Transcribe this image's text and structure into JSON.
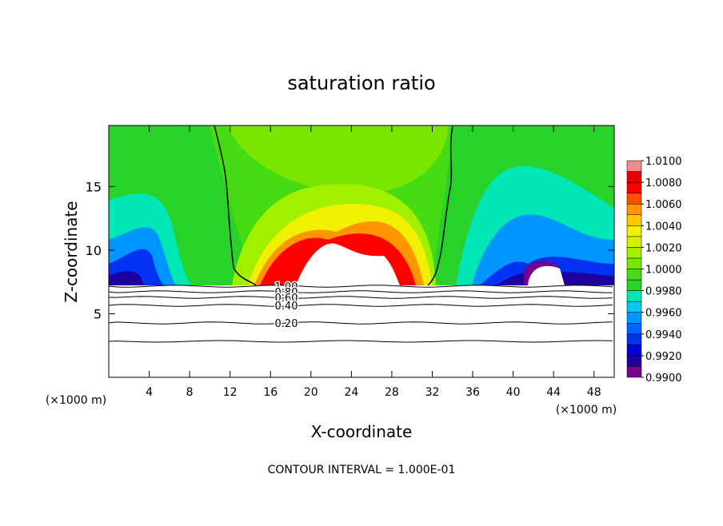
{
  "chart_data": {
    "type": "contour",
    "title": "saturation ratio",
    "x_label": "X-coordinate",
    "y_label": "Z-coordinate",
    "x_unit_labels": [
      "(×1000 m)",
      "(×1000 m)"
    ],
    "xlim": [
      0,
      50
    ],
    "xticks": [
      4,
      8,
      12,
      16,
      20,
      24,
      28,
      32,
      36,
      40,
      44,
      48
    ],
    "ylim": [
      0,
      19.8
    ],
    "yticks": [
      5,
      10,
      15
    ],
    "colorbar": {
      "clim": [
        0.99,
        1.01
      ],
      "colors": [
        "#78008c",
        "#1e00a0",
        "#0000dc",
        "#0032f0",
        "#0064ff",
        "#0096ff",
        "#00c8f0",
        "#00e6b4",
        "#28d228",
        "#46dc14",
        "#78e600",
        "#a0f000",
        "#d2f000",
        "#f0f000",
        "#ffc800",
        "#ff9600",
        "#ff5000",
        "#ff0000",
        "#e60000",
        "#f08c8c"
      ],
      "ticks": [
        {
          "value": 0.99,
          "label": "0.9900"
        },
        {
          "value": 0.992,
          "label": "0.9920"
        },
        {
          "value": 0.994,
          "label": "0.9940"
        },
        {
          "value": 0.996,
          "label": "0.9960"
        },
        {
          "value": 0.998,
          "label": "0.9980"
        },
        {
          "value": 1.0,
          "label": "1.0000"
        },
        {
          "value": 1.002,
          "label": "1.0020"
        },
        {
          "value": 1.004,
          "label": "1.0040"
        },
        {
          "value": 1.006,
          "label": "1.0060"
        },
        {
          "value": 1.008,
          "label": "1.0080"
        },
        {
          "value": 1.01,
          "label": "1.0100"
        }
      ]
    },
    "contour_labels": [
      {
        "value": 1.0,
        "label": "1.00"
      },
      {
        "value": 0.8,
        "label": "0.80"
      },
      {
        "value": 0.6,
        "label": "0.60"
      },
      {
        "value": 0.4,
        "label": "0.40"
      },
      {
        "value": 0.2,
        "label": "0.20"
      }
    ],
    "contour_interval_text": "CONTOUR INTERVAL = 1.000E-01"
  }
}
